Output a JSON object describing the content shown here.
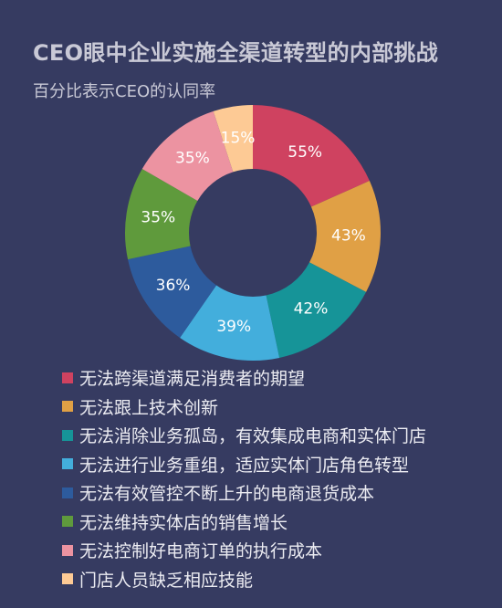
{
  "title": "CEO眼中企业实施全渠道转型的内部挑战",
  "subtitle": "百分比表示CEO的认同率",
  "chart_data": {
    "type": "pie",
    "donut": true,
    "legend_position": "bottom-left",
    "slices": [
      {
        "label": "无法跨渠道满足消费者的期望",
        "value": 55,
        "value_label": "55%",
        "color": "#cf4260"
      },
      {
        "label": "无法跟上技术创新",
        "value": 43,
        "value_label": "43%",
        "color": "#e0a045"
      },
      {
        "label": "无法消除业务孤岛，有效集成电商和实体门店",
        "value": 42,
        "value_label": "42%",
        "color": "#169498"
      },
      {
        "label": "无法进行业务重组，适应实体门店角色转型",
        "value": 39,
        "value_label": "39%",
        "color": "#43aedc"
      },
      {
        "label": "无法有效管控不断上升的电商退货成本",
        "value": 36,
        "value_label": "36%",
        "color": "#2d5b9d"
      },
      {
        "label": "无法维持实体店的销售增长",
        "value": 35,
        "value_label": "35%",
        "color": "#5f9a3c"
      },
      {
        "label": "无法控制好电商订单的执行成本",
        "value": 35,
        "value_label": "35%",
        "color": "#ec93a1"
      },
      {
        "label": "门店人员缺乏相应技能",
        "value": 15,
        "value_label": "15%",
        "color": "#fdca95"
      }
    ]
  }
}
